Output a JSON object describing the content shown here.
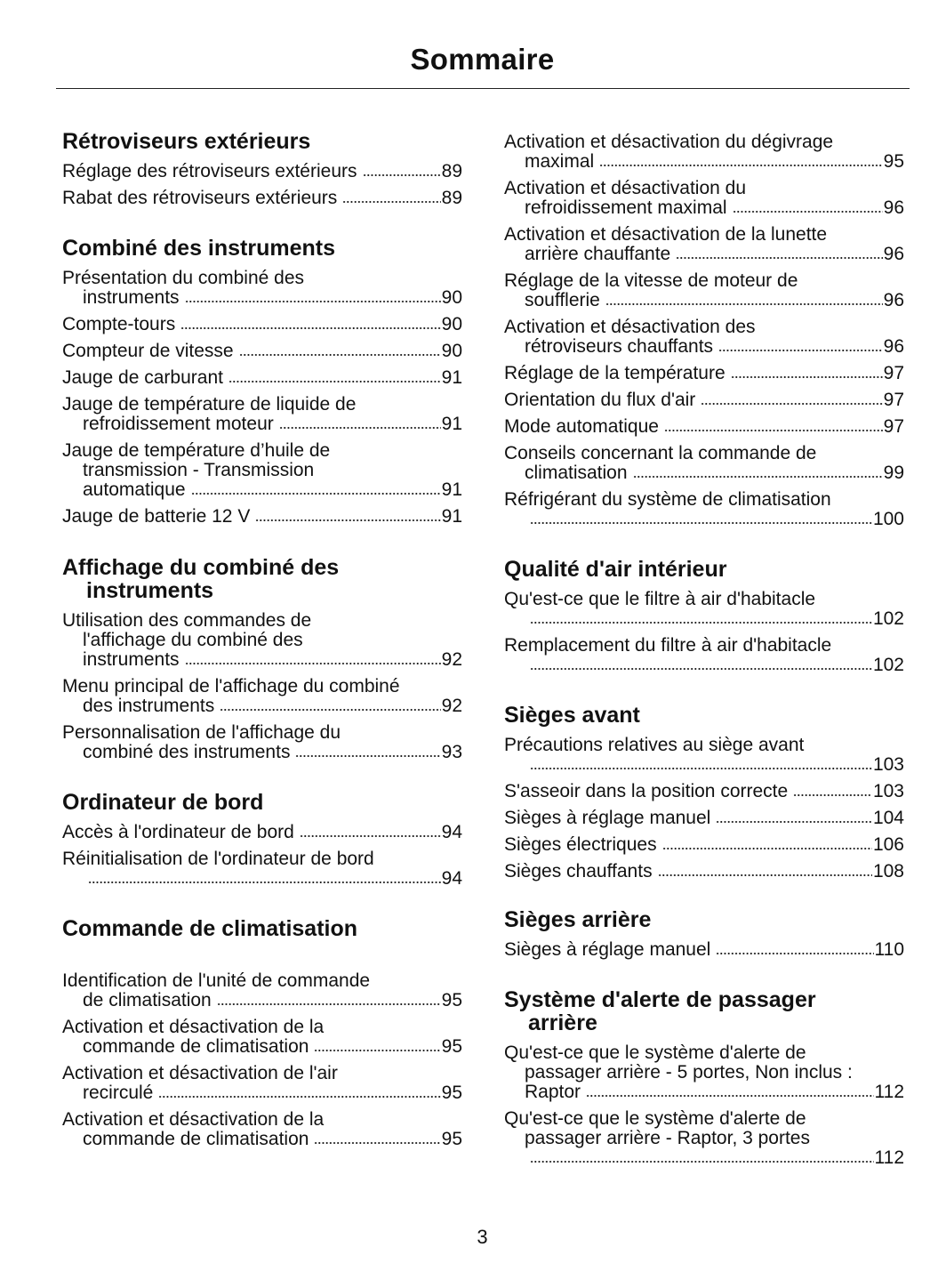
{
  "title": "Sommaire",
  "page_number": "3",
  "left_sections": [
    {
      "heading": [
        "Rétroviseurs extérieurs"
      ],
      "entries": [
        {
          "lines": [
            "Réglage des rétroviseurs extérieurs"
          ],
          "page": "89"
        },
        {
          "lines": [
            "Rabat des rétroviseurs extérieurs"
          ],
          "page": "89"
        }
      ]
    },
    {
      "heading": [
        "Combiné des instruments"
      ],
      "entries": [
        {
          "lines": [
            "Présentation du combiné des",
            "instruments"
          ],
          "page": "90"
        },
        {
          "lines": [
            "Compte-tours"
          ],
          "page": "90"
        },
        {
          "lines": [
            "Compteur de vitesse"
          ],
          "page": "90"
        },
        {
          "lines": [
            "Jauge de carburant"
          ],
          "page": "91"
        },
        {
          "lines": [
            "Jauge de température de liquide de",
            "refroidissement moteur"
          ],
          "page": "91"
        },
        {
          "lines": [
            "Jauge de température d’huile de",
            "transmission - Transmission",
            "automatique"
          ],
          "page": "91"
        },
        {
          "lines": [
            "Jauge de batterie 12 V"
          ],
          "page": "91"
        }
      ]
    },
    {
      "heading": [
        "Affichage du combiné des",
        "instruments"
      ],
      "entries": [
        {
          "lines": [
            "Utilisation des commandes de",
            "l'affichage du combiné des",
            "instruments"
          ],
          "page": "92"
        },
        {
          "lines": [
            "Menu principal de l'affichage du combiné",
            "des instruments"
          ],
          "page": "92"
        },
        {
          "lines": [
            "Personnalisation de l'affichage du",
            "combiné des instruments"
          ],
          "page": "93"
        }
      ]
    },
    {
      "heading": [
        "Ordinateur de bord"
      ],
      "entries": [
        {
          "lines": [
            "Accès à l'ordinateur de bord"
          ],
          "page": "94"
        },
        {
          "lines": [
            "Réinitialisation de l'ordinateur de bord",
            ""
          ],
          "page": "94"
        }
      ]
    },
    {
      "heading": [
        "Commande de climatisation"
      ],
      "entries": [
        {
          "lines": [
            "Identification de l'unité de commande",
            "de climatisation"
          ],
          "page": "95"
        },
        {
          "lines": [
            "Activation et désactivation de la",
            "commande de climatisation"
          ],
          "page": "95"
        },
        {
          "lines": [
            "Activation et désactivation de l'air",
            "recirculé"
          ],
          "page": "95"
        },
        {
          "lines": [
            "Activation et désactivation de la",
            "commande de climatisation"
          ],
          "page": "95"
        }
      ]
    }
  ],
  "right_sections": [
    {
      "heading": [],
      "entries": [
        {
          "lines": [
            "Activation et désactivation du dégivrage",
            "maximal"
          ],
          "page": "95"
        },
        {
          "lines": [
            "Activation et désactivation du",
            "refroidissement maximal"
          ],
          "page": "96"
        },
        {
          "lines": [
            "Activation et désactivation de la lunette",
            "arrière chauffante"
          ],
          "page": "96"
        },
        {
          "lines": [
            "Réglage de la vitesse de moteur de",
            "soufflerie"
          ],
          "page": "96"
        },
        {
          "lines": [
            "Activation et désactivation des",
            "rétroviseurs chauffants"
          ],
          "page": "96"
        },
        {
          "lines": [
            "Réglage de la température"
          ],
          "page": "97"
        },
        {
          "lines": [
            "Orientation du flux d'air"
          ],
          "page": "97"
        },
        {
          "lines": [
            "Mode automatique"
          ],
          "page": "97"
        },
        {
          "lines": [
            "Conseils concernant la commande de",
            "climatisation"
          ],
          "page": "99"
        },
        {
          "lines": [
            "Réfrigérant du système de climatisation",
            ""
          ],
          "page": "100"
        }
      ]
    },
    {
      "heading": [
        "Qualité d'air intérieur"
      ],
      "entries": [
        {
          "lines": [
            "Qu'est-ce que le filtre à air d'habitacle",
            ""
          ],
          "page": "102"
        },
        {
          "lines": [
            "Remplacement du filtre à air d'habitacle",
            ""
          ],
          "page": "102"
        }
      ]
    },
    {
      "heading": [
        "Sièges avant"
      ],
      "entries": [
        {
          "lines": [
            "Précautions relatives au siège avant",
            ""
          ],
          "page": "103"
        },
        {
          "lines": [
            "S'asseoir dans la position correcte"
          ],
          "page": "103"
        },
        {
          "lines": [
            "Sièges à réglage manuel"
          ],
          "page": "104"
        },
        {
          "lines": [
            "Sièges électriques"
          ],
          "page": "106"
        },
        {
          "lines": [
            "Sièges chauffants"
          ],
          "page": "108"
        }
      ]
    },
    {
      "heading": [
        "Sièges arrière"
      ],
      "entries": [
        {
          "lines": [
            "Sièges à réglage manuel"
          ],
          "page": "110"
        }
      ]
    },
    {
      "heading": [
        "Système d'alerte de passager",
        "arrière"
      ],
      "entries": [
        {
          "lines": [
            "Qu'est-ce que le système d'alerte de",
            "passager arrière - 5 portes, Non inclus :",
            "Raptor"
          ],
          "page": "112"
        },
        {
          "lines": [
            "Qu'est-ce que le système d'alerte de",
            "passager arrière - Raptor, 3 portes",
            ""
          ],
          "page": "112"
        }
      ]
    }
  ]
}
